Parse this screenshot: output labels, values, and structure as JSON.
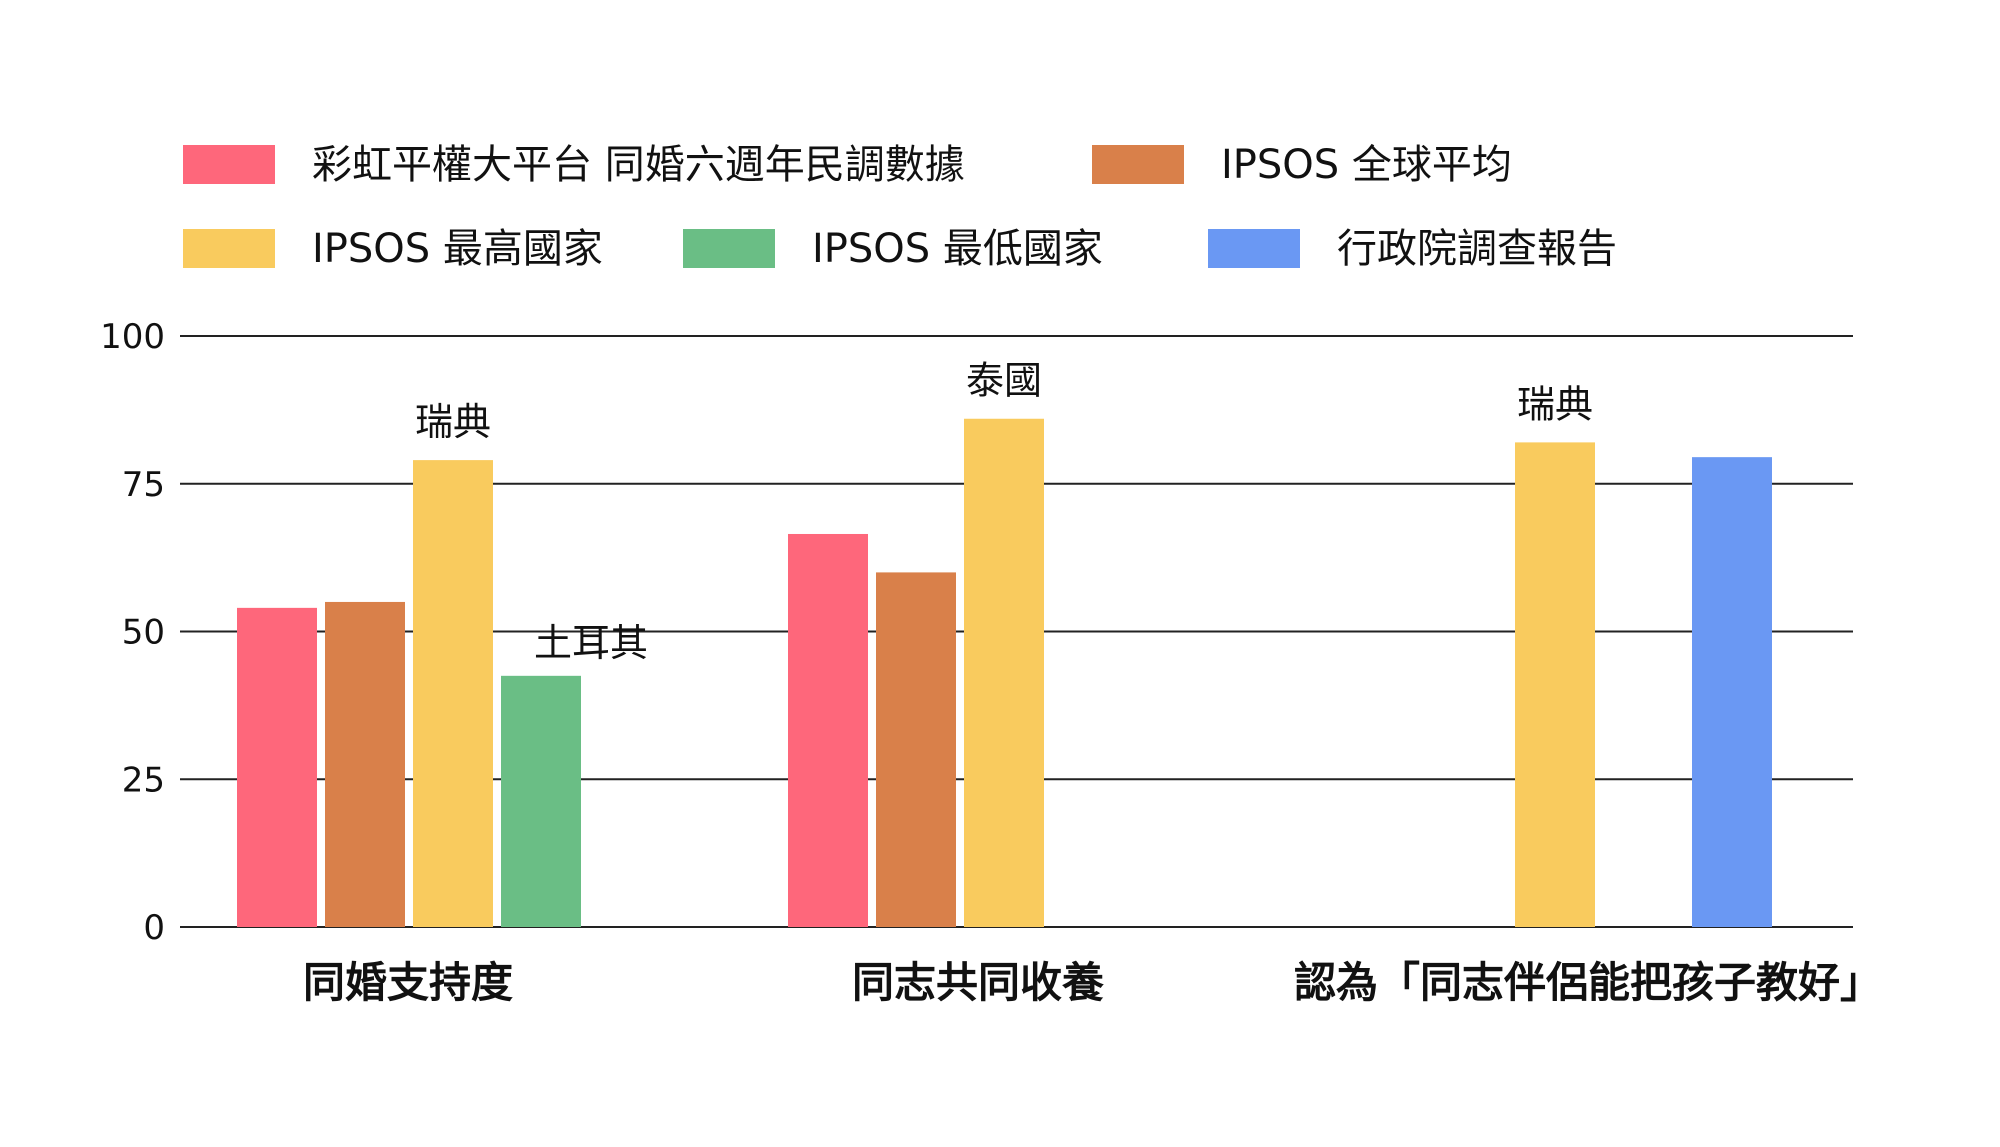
{
  "chart_data": {
    "type": "bar",
    "title": "",
    "xlabel": "",
    "ylabel": "",
    "ylim": [
      0,
      100
    ],
    "yticks": [
      0,
      25,
      50,
      75,
      100
    ],
    "grid": true,
    "legend_position": "top",
    "categories": [
      "同婚支持度",
      "同志共同收養",
      "認為「同志伴侶能把孩子教好」"
    ],
    "series": [
      {
        "name": "彩虹平權大平台 同婚六週年民調數據",
        "color": "#fe677b",
        "values": [
          54,
          66.5,
          null
        ]
      },
      {
        "name": "IPSOS 全球平均",
        "color": "#d9804a",
        "values": [
          55,
          60,
          null
        ]
      },
      {
        "name": "IPSOS 最高國家",
        "color": "#f9cb5e",
        "values": [
          79,
          86,
          82
        ]
      },
      {
        "name": "IPSOS 最低國家",
        "color": "#6abe85",
        "values": [
          42.5,
          null,
          null
        ]
      },
      {
        "name": "行政院調查報告",
        "color": "#6a98f3",
        "values": [
          null,
          null,
          79.5
        ]
      }
    ],
    "annotations": [
      {
        "text": "瑞典",
        "category": 0,
        "series": 2
      },
      {
        "text": "土耳其",
        "category": 0,
        "series": 3
      },
      {
        "text": "泰國",
        "category": 1,
        "series": 2
      },
      {
        "text": "瑞典",
        "category": 2,
        "series": 2
      }
    ]
  }
}
